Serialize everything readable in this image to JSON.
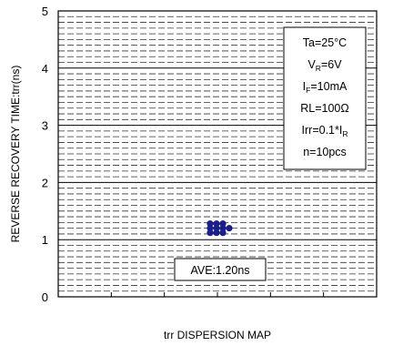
{
  "chart_data": {
    "type": "scatter",
    "xlabel": "trr DISPERSION MAP",
    "ylabel": "REVERSE RECOVERY TIME:trr(ns)",
    "ylim": [
      0,
      5
    ],
    "yticks": [
      "0",
      "1",
      "2",
      "3",
      "4",
      "5"
    ],
    "grid": true,
    "series": [
      {
        "color": "#1a1f8c",
        "y": [
          1.28,
          1.28,
          1.28,
          1.2,
          1.2,
          1.2,
          1.2,
          1.12,
          1.12,
          1.12
        ]
      }
    ],
    "conditions": {
      "ta": "Ta=25°C",
      "vr": {
        "main": "V",
        "sub": "R",
        "rest": "=6V"
      },
      "if": {
        "main": "I",
        "sub": "F",
        "rest": "=10mA"
      },
      "rl": "RL=100Ω",
      "irr": {
        "main": "Irr=0.1*I",
        "sub": "R",
        "rest": ""
      },
      "n": "n=10pcs"
    },
    "average_label": "AVE:1.20ns"
  }
}
